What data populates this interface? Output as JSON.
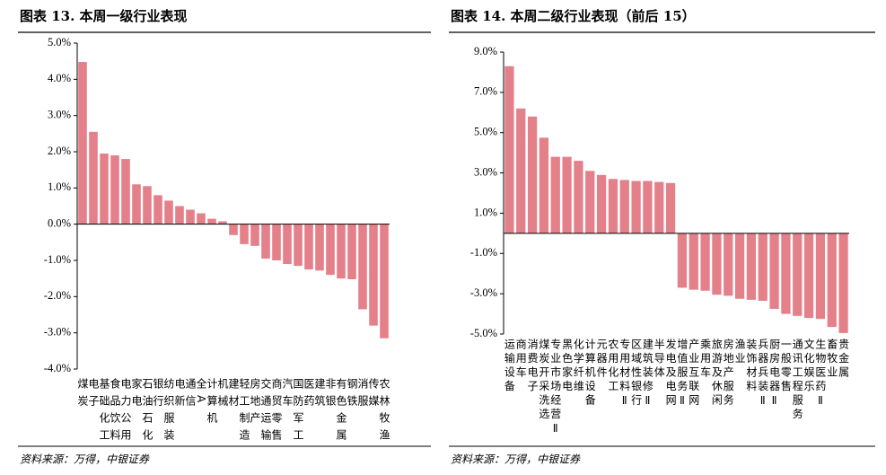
{
  "chart_data": [
    {
      "type": "bar",
      "title": "图表 13. 本周一级行业表现",
      "source": "资料来源：万得，中银证券",
      "color": "#e4808a",
      "categories": [
        "煤炭",
        "电子",
        "基础化工",
        "食品饮料",
        "电力公用",
        "家电",
        "石油石化",
        "银行",
        "纺织服装",
        "电新",
        "通信",
        "全A",
        "计算机",
        "机械",
        "建材",
        "轻工制造",
        "房地产",
        "交通运输",
        "商贸零售",
        "汽车",
        "国防军工",
        "医药",
        "建筑",
        "非银",
        "有色金属",
        "钢铁",
        "消服",
        "传媒",
        "农林牧渔"
      ],
      "values": [
        4.48,
        2.55,
        1.95,
        1.9,
        1.8,
        1.1,
        1.05,
        0.8,
        0.65,
        0.5,
        0.4,
        0.3,
        0.15,
        0.08,
        -0.3,
        -0.55,
        -0.6,
        -0.95,
        -1.0,
        -1.1,
        -1.15,
        -1.25,
        -1.28,
        -1.4,
        -1.5,
        -1.52,
        -2.35,
        -2.8,
        -3.15
      ],
      "ylim": [
        -4,
        5
      ],
      "yticks": [
        {
          "value": 5,
          "label": "5.0%"
        },
        {
          "value": 4,
          "label": "4.0%"
        },
        {
          "value": 3,
          "label": "3.0%"
        },
        {
          "value": 2,
          "label": "2.0%"
        },
        {
          "value": 1,
          "label": "1.0%"
        },
        {
          "value": 0,
          "label": "0.0%"
        },
        {
          "value": -1,
          "label": "-1.0%"
        },
        {
          "value": -2,
          "label": "-2.0%"
        },
        {
          "value": -3,
          "label": "-3.0%"
        },
        {
          "value": -4,
          "label": "-4.0%"
        }
      ]
    },
    {
      "type": "bar",
      "title": "图表 14. 本周二级行业表现（前后 15）",
      "source": "资料来源：万得，中银证券",
      "color": "#e4808a",
      "categories": [
        "运输设备",
        "商用车",
        "消费电子",
        "煤炭开采洗选",
        "专业市场经营Ⅱ",
        "黑色家电",
        "化学纤维",
        "计算机设备",
        "元器件",
        "农用化工",
        "专用材料Ⅱ",
        "区域性银行",
        "建筑装修Ⅱ",
        "半导体",
        "发电及电网",
        "增值服务Ⅱ",
        "产业互联网",
        "乘用车",
        "旅游及休闲",
        "房地产服务",
        "渔业",
        "装饰材料",
        "兵器兵装Ⅱ",
        "厨房电器Ⅱ",
        "一般零售",
        "通讯工程服务",
        "文化娱乐",
        "生物医药Ⅱ",
        "畜牧业",
        "贵金属"
      ],
      "values": [
        8.3,
        6.2,
        5.8,
        4.75,
        3.8,
        3.8,
        3.6,
        3.1,
        2.9,
        2.7,
        2.65,
        2.6,
        2.6,
        2.55,
        2.5,
        -2.7,
        -2.8,
        -2.85,
        -3.05,
        -3.1,
        -3.25,
        -3.3,
        -3.35,
        -3.75,
        -4.0,
        -4.1,
        -4.2,
        -4.25,
        -4.65,
        -4.95
      ],
      "ylim": [
        -5,
        9
      ],
      "yticks": [
        {
          "value": 9,
          "label": "9.0%"
        },
        {
          "value": 7,
          "label": "7.0%"
        },
        {
          "value": 5,
          "label": "5.0%"
        },
        {
          "value": 3,
          "label": "3.0%"
        },
        {
          "value": 1,
          "label": "1.0%"
        },
        {
          "value": -1,
          "label": "-1.0%"
        },
        {
          "value": -3,
          "label": "-3.0%"
        },
        {
          "value": -5,
          "label": "-5.0%"
        }
      ]
    }
  ]
}
